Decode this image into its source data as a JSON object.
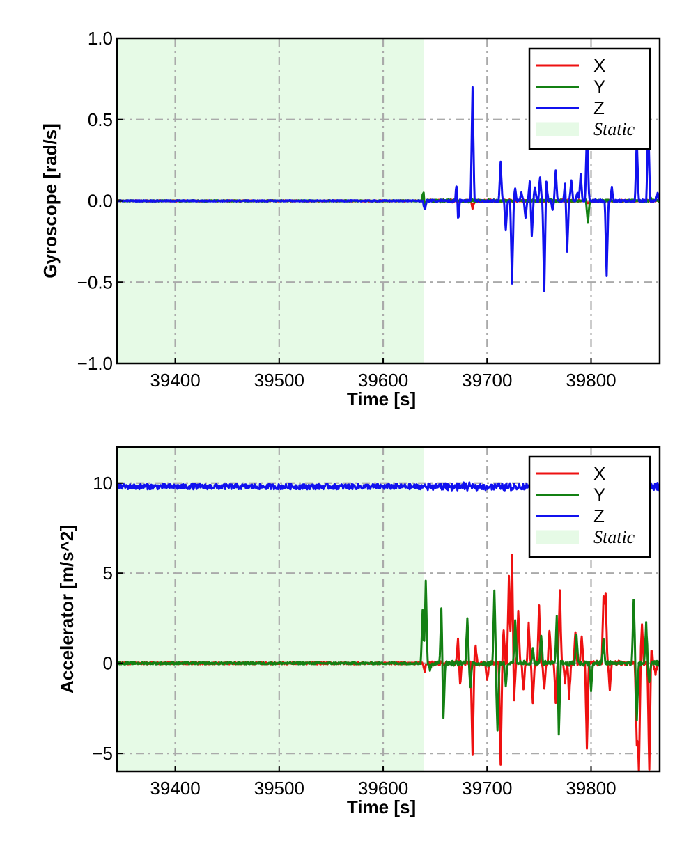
{
  "chart_data": [
    {
      "type": "line",
      "xlabel": "Time [s]",
      "ylabel": "Gyroscope [rad/s]",
      "xlim": [
        39344,
        39866
      ],
      "ylim": [
        -1.0,
        1.0
      ],
      "xticks": [
        39400,
        39500,
        39600,
        39700,
        39800
      ],
      "xtick_labels": [
        "39400",
        "39500",
        "39600",
        "39700",
        "39800"
      ],
      "yticks": [
        -1.0,
        -0.5,
        0.0,
        0.5,
        1.0
      ],
      "ytick_labels": [
        "−1.0",
        "−0.5",
        "0.0",
        "0.5",
        "1.0"
      ],
      "grid": true,
      "legend_position": "top-right",
      "static_region": {
        "label": "Static",
        "x_start": 39344,
        "x_end": 39639,
        "color": "#e6fae6"
      },
      "series": [
        {
          "name": "X",
          "color": "#ee1111",
          "baseline": 0.0,
          "spikes": [
            [
              39639,
              0.04
            ],
            [
              39640,
              -0.05
            ],
            [
              39686,
              -0.04
            ],
            [
              39797,
              -0.02
            ]
          ]
        },
        {
          "name": "Y",
          "color": "#138013",
          "baseline": 0.0,
          "spikes": [
            [
              39639,
              0.08
            ],
            [
              39640,
              -0.07
            ],
            [
              39797,
              -0.14
            ],
            [
              39857,
              0.02
            ]
          ]
        },
        {
          "name": "Z",
          "color": "#1111ee",
          "baseline": 0.0,
          "spikes": [
            [
              39640,
              -0.06
            ],
            [
              39671,
              0.16
            ],
            [
              39672,
              -0.17
            ],
            [
              39686,
              0.7
            ],
            [
              39713,
              0.24
            ],
            [
              39718,
              -0.18
            ],
            [
              39724,
              -0.5
            ],
            [
              39727,
              0.07
            ],
            [
              39733,
              0.05
            ],
            [
              39737,
              -0.1
            ],
            [
              39741,
              0.12
            ],
            [
              39743,
              -0.22
            ],
            [
              39746,
              0.09
            ],
            [
              39751,
              0.15
            ],
            [
              39755,
              -0.56
            ],
            [
              39757,
              0.12
            ],
            [
              39763,
              -0.05
            ],
            [
              39766,
              0.19
            ],
            [
              39775,
              0.11
            ],
            [
              39777,
              -0.32
            ],
            [
              39781,
              0.13
            ],
            [
              39787,
              0.05
            ],
            [
              39790,
              0.16
            ],
            [
              39796,
              0.4
            ],
            [
              39797,
              0.1
            ],
            [
              39815,
              -0.46
            ],
            [
              39820,
              0.08
            ],
            [
              39844,
              0.38
            ],
            [
              39855,
              0.5
            ],
            [
              39864,
              0.05
            ]
          ]
        }
      ]
    },
    {
      "type": "line",
      "xlabel": "Time [s]",
      "ylabel": "Accelerator [m/s^2]",
      "xlim": [
        39344,
        39866
      ],
      "ylim": [
        -6,
        12
      ],
      "xticks": [
        39400,
        39500,
        39600,
        39700,
        39800
      ],
      "xtick_labels": [
        "39400",
        "39500",
        "39600",
        "39700",
        "39800"
      ],
      "yticks": [
        -5,
        0,
        5,
        10
      ],
      "ytick_labels": [
        "−5",
        "0",
        "5",
        "10"
      ],
      "grid": true,
      "legend_position": "top-right",
      "static_region": {
        "label": "Static",
        "x_start": 39344,
        "x_end": 39639,
        "color": "#e6fae6"
      },
      "series": [
        {
          "name": "X",
          "color": "#ee1111",
          "baseline": 0.0,
          "spikes": [
            [
              39640,
              -0.4
            ],
            [
              39672,
              1.4
            ],
            [
              39674,
              -1.2
            ],
            [
              39686,
              -5.2
            ],
            [
              39689,
              1.0
            ],
            [
              39700,
              -1.0
            ],
            [
              39713,
              -5.6
            ],
            [
              39716,
              1.9
            ],
            [
              39721,
              4.9
            ],
            [
              39724,
              6.0
            ],
            [
              39726,
              -2.0
            ],
            [
              39730,
              2.9
            ],
            [
              39735,
              -1.5
            ],
            [
              39740,
              2.2
            ],
            [
              39744,
              -2.2
            ],
            [
              39750,
              3.1
            ],
            [
              39755,
              -1.5
            ],
            [
              39760,
              1.9
            ],
            [
              39766,
              -2.2
            ],
            [
              39770,
              4.1
            ],
            [
              39775,
              -1.1
            ],
            [
              39779,
              -1.9
            ],
            [
              39785,
              1.8
            ],
            [
              39791,
              1.5
            ],
            [
              39796,
              -4.7
            ],
            [
              39812,
              3.7
            ],
            [
              39814,
              3.9
            ],
            [
              39818,
              -1.5
            ],
            [
              39844,
              -4.6
            ],
            [
              39846,
              -6.0
            ],
            [
              39849,
              2.1
            ],
            [
              39856,
              -6.0
            ],
            [
              39858,
              0.8
            ],
            [
              39862,
              -0.6
            ]
          ]
        },
        {
          "name": "Y",
          "color": "#138013",
          "baseline": 0.0,
          "spikes": [
            [
              39638,
              2.9
            ],
            [
              39641,
              4.6
            ],
            [
              39645,
              -0.4
            ],
            [
              39656,
              3.0
            ],
            [
              39658,
              -3.1
            ],
            [
              39681,
              2.6
            ],
            [
              39684,
              -1.3
            ],
            [
              39707,
              4.0
            ],
            [
              39710,
              -3.8
            ],
            [
              39718,
              -1.2
            ],
            [
              39727,
              2.3
            ],
            [
              39744,
              0.8
            ],
            [
              39752,
              1.6
            ],
            [
              39767,
              2.6
            ],
            [
              39769,
              -3.9
            ],
            [
              39786,
              1.6
            ],
            [
              39800,
              -1.5
            ],
            [
              39812,
              1.4
            ],
            [
              39841,
              3.6
            ],
            [
              39844,
              -3.2
            ],
            [
              39853,
              2.2
            ],
            [
              39856,
              -1.1
            ]
          ]
        },
        {
          "name": "Z",
          "color": "#1111ee",
          "baseline": 9.8,
          "spikes": []
        }
      ]
    }
  ]
}
